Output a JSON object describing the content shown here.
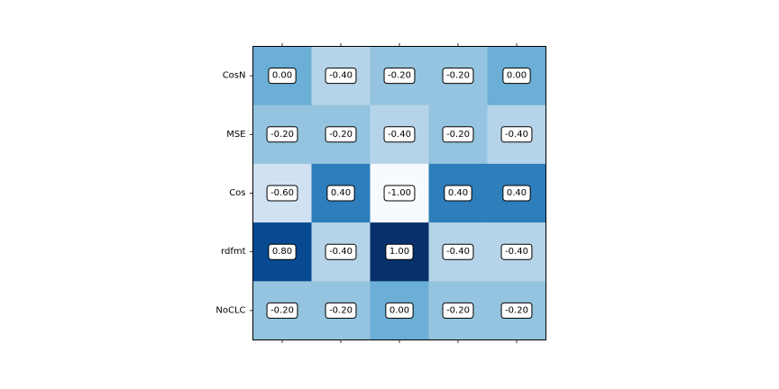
{
  "chart_data": {
    "type": "heatmap",
    "title": "",
    "xlabel": "",
    "ylabel": "",
    "x_categories": [
      "",
      "",
      "",
      "",
      ""
    ],
    "y_categories": [
      "CosN",
      "MSE",
      "Cos",
      "rdfmt",
      "NoCLC"
    ],
    "values": [
      [
        0.0,
        -0.4,
        -0.2,
        -0.2,
        0.0
      ],
      [
        -0.2,
        -0.2,
        -0.4,
        -0.2,
        -0.4
      ],
      [
        -0.6,
        0.4,
        -1.0,
        0.4,
        0.4
      ],
      [
        0.8,
        -0.4,
        1.0,
        -0.4,
        -0.4
      ],
      [
        -0.2,
        -0.2,
        0.0,
        -0.2,
        -0.2
      ]
    ],
    "value_labels": [
      [
        "0.00",
        "-0.40",
        "-0.20",
        "-0.20",
        "0.00"
      ],
      [
        "-0.20",
        "-0.20",
        "-0.40",
        "-0.20",
        "-0.40"
      ],
      [
        "-0.60",
        "0.40",
        "-1.00",
        "0.40",
        "0.40"
      ],
      [
        "0.80",
        "-0.40",
        "1.00",
        "-0.40",
        "-0.40"
      ],
      [
        "-0.20",
        "-0.20",
        "0.00",
        "-0.20",
        "-0.20"
      ]
    ],
    "value_range": [
      -1.0,
      1.0
    ],
    "colormap": "Blues",
    "grid": false,
    "legend": "none"
  }
}
